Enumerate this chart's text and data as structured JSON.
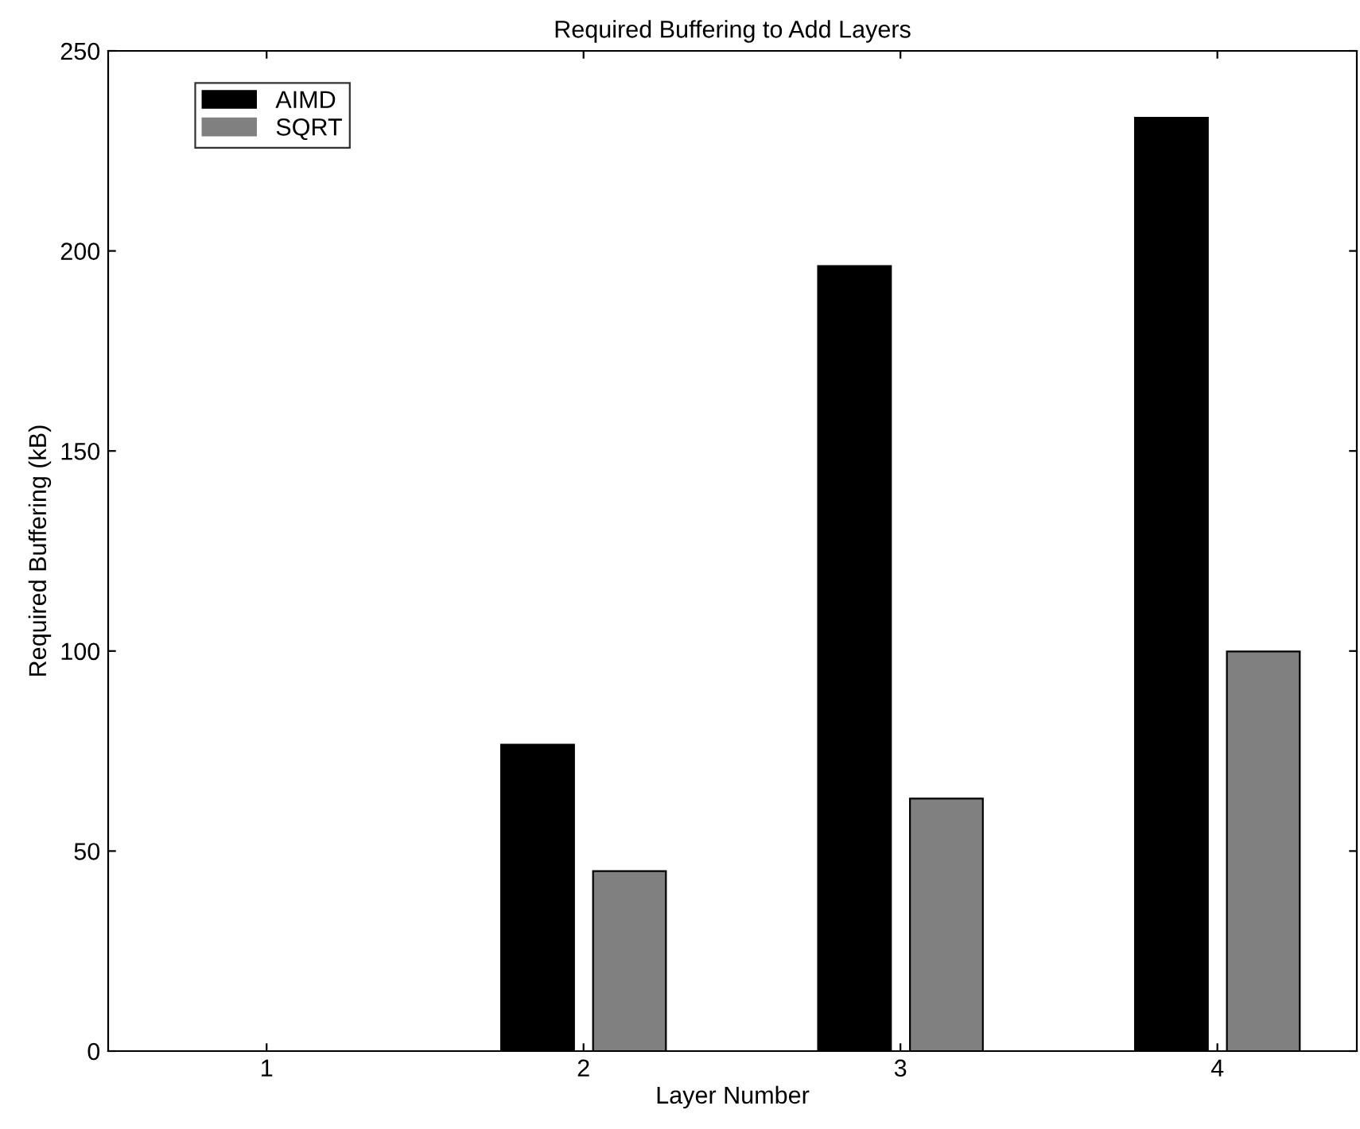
{
  "chart_data": {
    "type": "bar",
    "title": "Required Buffering to Add Layers",
    "xlabel": "Layer Number",
    "ylabel": "Required Buffering (kB)",
    "categories": [
      "1",
      "2",
      "3",
      "4"
    ],
    "series": [
      {
        "name": "AIMD",
        "color": "#000000",
        "values": [
          0,
          76.6,
          196.2,
          233.3
        ]
      },
      {
        "name": "SQRT",
        "color": "#808080",
        "values": [
          0,
          45.0,
          63.1,
          99.9
        ]
      }
    ],
    "ylim": [
      0,
      250
    ],
    "yticks": [
      0,
      50,
      100,
      150,
      200,
      250
    ],
    "grid": false,
    "legend": "top left"
  }
}
